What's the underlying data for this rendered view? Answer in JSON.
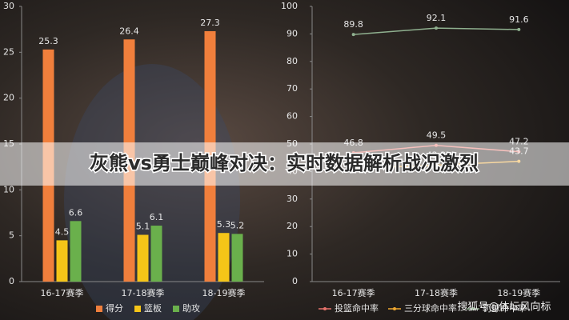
{
  "banner_title": "灰熊vs勇士巅峰对决：实时数据解析战况激烈",
  "watermark": "搜狐号@体坛风向标",
  "chart_data": [
    {
      "type": "bar",
      "categories": [
        "16-17赛季",
        "17-18赛季",
        "18-19赛季"
      ],
      "series": [
        {
          "name": "得分",
          "color": "#f07f3c",
          "values": [
            25.3,
            26.4,
            27.3
          ]
        },
        {
          "name": "篮板",
          "color": "#f5c518",
          "values": [
            4.5,
            5.1,
            5.3
          ]
        },
        {
          "name": "助攻",
          "color": "#6ab04c",
          "values": [
            6.6,
            6.1,
            5.2
          ]
        }
      ],
      "ylim": [
        0,
        30
      ],
      "yticks": [
        0,
        5,
        10,
        15,
        20,
        25,
        30
      ],
      "grid": false,
      "legend": "bottom"
    },
    {
      "type": "line",
      "categories": [
        "16-17赛季",
        "17-18赛季",
        "18-19赛季"
      ],
      "series": [
        {
          "name": "投篮命中率",
          "color": "#e8736c",
          "values": [
            46.8,
            49.5,
            47.2
          ]
        },
        {
          "name": "三分球命中率",
          "color": "#f0a830",
          "values": [
            41.1,
            42.3,
            43.7
          ]
        },
        {
          "name": "罚球命中率",
          "color": "#8fb08f",
          "values": [
            89.8,
            92.1,
            91.6
          ]
        }
      ],
      "ylim": [
        0,
        100
      ],
      "yticks": [
        0,
        10,
        20,
        30,
        40,
        50,
        60,
        70,
        80,
        90,
        100
      ],
      "grid": false,
      "legend": "bottom"
    }
  ]
}
